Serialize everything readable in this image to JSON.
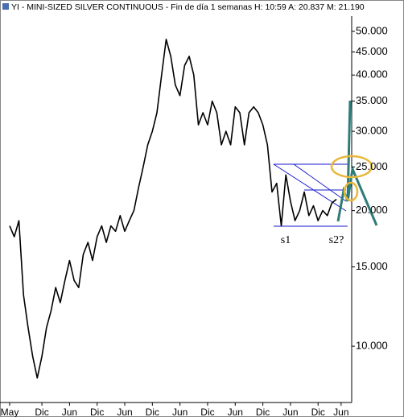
{
  "chart_data": {
    "type": "line",
    "title": "YI - MINI-SIZED SILVER CONTINUOUS - Fin de día 1 semanas  H: 10:59  A: 20.837  M: 21.190",
    "x": [
      0,
      1,
      2,
      3,
      4,
      5,
      6,
      7,
      8,
      9,
      10,
      11,
      12,
      13,
      14,
      15,
      16,
      17,
      18,
      19,
      20,
      21,
      22,
      23,
      24,
      25,
      26,
      27,
      28,
      29,
      30,
      31,
      32,
      33,
      34,
      35,
      36,
      37,
      38,
      39,
      40,
      41,
      42,
      43,
      44,
      45,
      46,
      47,
      48,
      49,
      50,
      51,
      52,
      53,
      54,
      55,
      56,
      57,
      58,
      59,
      60,
      61,
      62,
      63,
      64,
      65,
      66,
      67,
      68,
      69,
      70,
      71
    ],
    "series": [
      {
        "name": "YI",
        "color": "#000000",
        "values": [
          18.5,
          17.5,
          19,
          13,
          11,
          9.5,
          8.5,
          9.5,
          11,
          12,
          13.5,
          12.5,
          14,
          15.5,
          14,
          13.5,
          16,
          17,
          15.5,
          17.5,
          18.5,
          17,
          18.5,
          18,
          19.5,
          18,
          19,
          20,
          22.5,
          25,
          28,
          30,
          33,
          40,
          48,
          44,
          38,
          36,
          42,
          44,
          40,
          31,
          33,
          31,
          35,
          33,
          28,
          30,
          28,
          34,
          33,
          28,
          33,
          34,
          33,
          31,
          28,
          22,
          23,
          18.5,
          24,
          21,
          19,
          20,
          22,
          19.5,
          20.5,
          19,
          20,
          19.5,
          20.8,
          21.2
        ]
      }
    ],
    "log_scale": true,
    "xlim": [
      -2.1,
      74.3
    ],
    "ylim": [
      7.5,
      58.7
    ],
    "xticks": [
      {
        "value": 0,
        "label": "May"
      },
      {
        "value": 7,
        "label": "Dic"
      },
      {
        "value": 13,
        "label": "Jun"
      },
      {
        "value": 19,
        "label": "Dic"
      },
      {
        "value": 25,
        "label": "Jun"
      },
      {
        "value": 31,
        "label": "Dic"
      },
      {
        "value": 37,
        "label": "Jun"
      },
      {
        "value": 43,
        "label": "Dic"
      },
      {
        "value": 49,
        "label": "Jun"
      },
      {
        "value": 55,
        "label": "Dic"
      },
      {
        "value": 61,
        "label": "Jun"
      },
      {
        "value": 67,
        "label": "Dic"
      },
      {
        "value": 72,
        "label": "Jun"
      }
    ],
    "yticks": [
      {
        "value": 10,
        "label": "10.000"
      },
      {
        "value": 15,
        "label": "15.000"
      },
      {
        "value": 20,
        "label": "20.000"
      },
      {
        "value": 25,
        "label": "25.000"
      },
      {
        "value": 30,
        "label": "30.000"
      },
      {
        "value": 35,
        "label": "35.000"
      },
      {
        "value": 40,
        "label": "40.000"
      },
      {
        "value": 45,
        "label": "45.000"
      },
      {
        "value": 50,
        "label": "50.000"
      }
    ],
    "annotations": [
      "s1",
      "s2?"
    ]
  }
}
